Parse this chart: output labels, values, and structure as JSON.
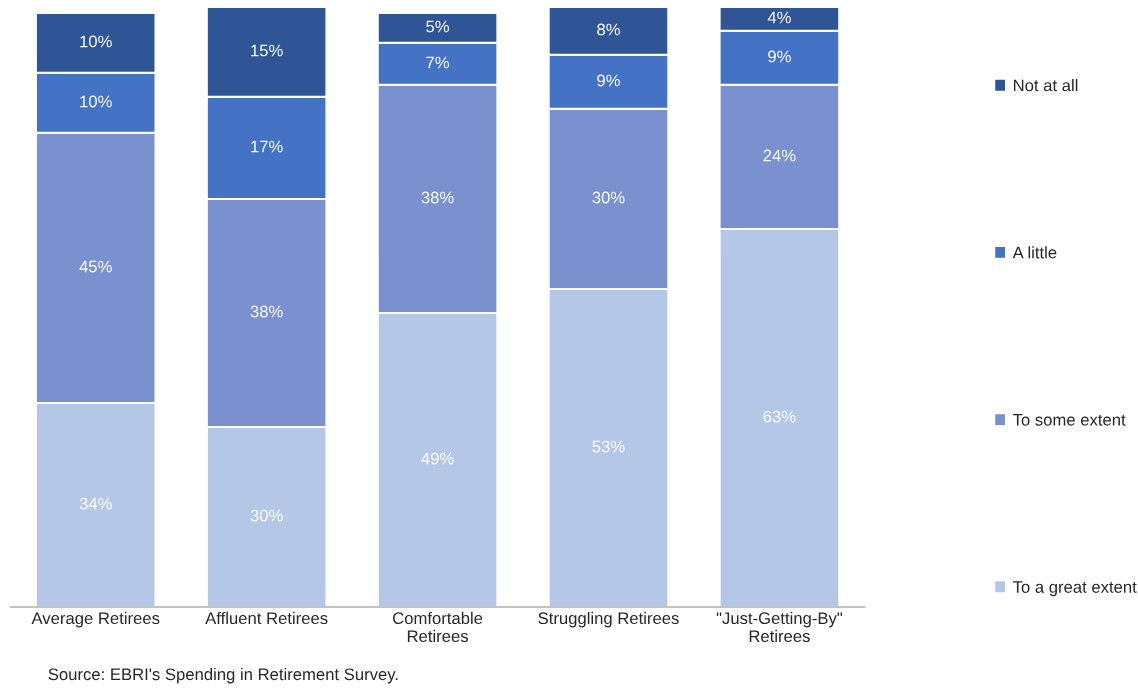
{
  "chart_data": {
    "type": "bar",
    "stacked": true,
    "categories": [
      "Average Retirees",
      "Affluent Retirees",
      "Comfortable Retirees",
      "Struggling Retirees",
      "\"Just-Getting-By\" Retirees"
    ],
    "series": [
      {
        "name": "To a great extent",
        "color": "#b4c7e7",
        "values": [
          34,
          30,
          49,
          53,
          63
        ],
        "value_labels": [
          "34%",
          "30%",
          "49%",
          "53%",
          "63%"
        ]
      },
      {
        "name": "To some extent",
        "color": "#7a90cf",
        "values": [
          45,
          38,
          38,
          30,
          24
        ],
        "value_labels": [
          "45%",
          "38%",
          "38%",
          "30%",
          "24%"
        ]
      },
      {
        "name": "A little",
        "color": "#4472c4",
        "values": [
          10,
          17,
          7,
          9,
          9
        ],
        "value_labels": [
          "10%",
          "17%",
          "7%",
          "9%",
          "9%"
        ]
      },
      {
        "name": "Not at all",
        "color": "#2f5597",
        "values": [
          10,
          15,
          5,
          8,
          4
        ],
        "value_labels": [
          "10%",
          "15%",
          "5%",
          "8%",
          "4%"
        ]
      }
    ],
    "ylim": [
      0,
      100
    ],
    "tick_labels": "x",
    "grid": false,
    "legend": "right",
    "annotations": [
      "Source: EBRI's Spending in Retirement Survey."
    ]
  }
}
